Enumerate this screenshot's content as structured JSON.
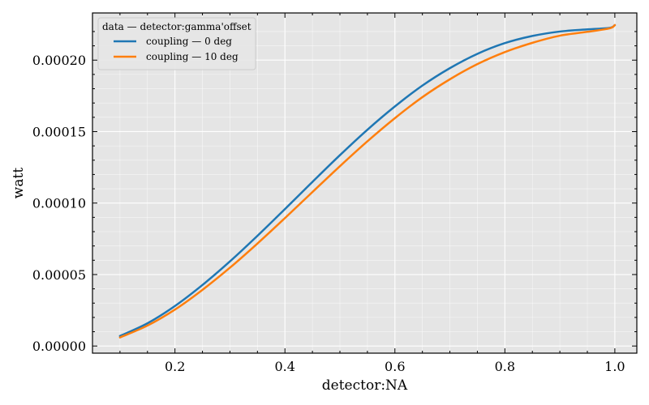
{
  "chart_data": {
    "type": "line",
    "xlabel": "detector:NA",
    "ylabel": "watt",
    "xlim": [
      0.05,
      1.04
    ],
    "ylim": [
      -5e-06,
      0.000233
    ],
    "x_ticks": [
      0.2,
      0.4,
      0.6,
      0.8,
      1.0
    ],
    "x_tick_labels": [
      "0.2",
      "0.4",
      "0.6",
      "0.8",
      "1.0"
    ],
    "y_ticks": [
      0.0,
      5e-05,
      0.0001,
      0.00015,
      0.0002
    ],
    "y_tick_labels": [
      "0.00000",
      "0.00005",
      "0.00010",
      "0.00015",
      "0.00020"
    ],
    "grid": true,
    "legend": {
      "title": "data — detector:gamma'offset",
      "placement": "top-left"
    },
    "colors": {
      "background": "#e5e5e5",
      "grid": "#ffffff"
    },
    "series": [
      {
        "name": "coupling — 0 deg",
        "color": "#1f77b4",
        "x": [
          0.1,
          0.15,
          0.2,
          0.25,
          0.3,
          0.35,
          0.4,
          0.45,
          0.5,
          0.55,
          0.6,
          0.65,
          0.7,
          0.75,
          0.8,
          0.85,
          0.9,
          0.95,
          0.99,
          1.0
        ],
        "y": [
          7e-06,
          1.59e-05,
          2.8e-05,
          4.27e-05,
          5.92e-05,
          7.71e-05,
          9.58e-05,
          0.0001148,
          0.0001335,
          0.0001513,
          0.0001676,
          0.0001822,
          0.0001944,
          0.0002044,
          0.0002119,
          0.0002169,
          0.00022,
          0.0002215,
          0.0002225,
          0.0002245
        ]
      },
      {
        "name": "coupling — 10 deg",
        "color": "#ff7f0e",
        "x": [
          0.1,
          0.15,
          0.2,
          0.25,
          0.3,
          0.35,
          0.4,
          0.45,
          0.5,
          0.55,
          0.6,
          0.65,
          0.7,
          0.75,
          0.8,
          0.85,
          0.9,
          0.95,
          0.99,
          1.0
        ],
        "y": [
          6e-06,
          1.43e-05,
          2.55e-05,
          3.93e-05,
          5.48e-05,
          7.17e-05,
          8.95e-05,
          0.0001077,
          0.0001258,
          0.0001432,
          0.0001594,
          0.0001741,
          0.0001866,
          0.0001972,
          0.0002056,
          0.0002121,
          0.0002171,
          0.0002198,
          0.0002222,
          0.0002245
        ]
      }
    ]
  }
}
